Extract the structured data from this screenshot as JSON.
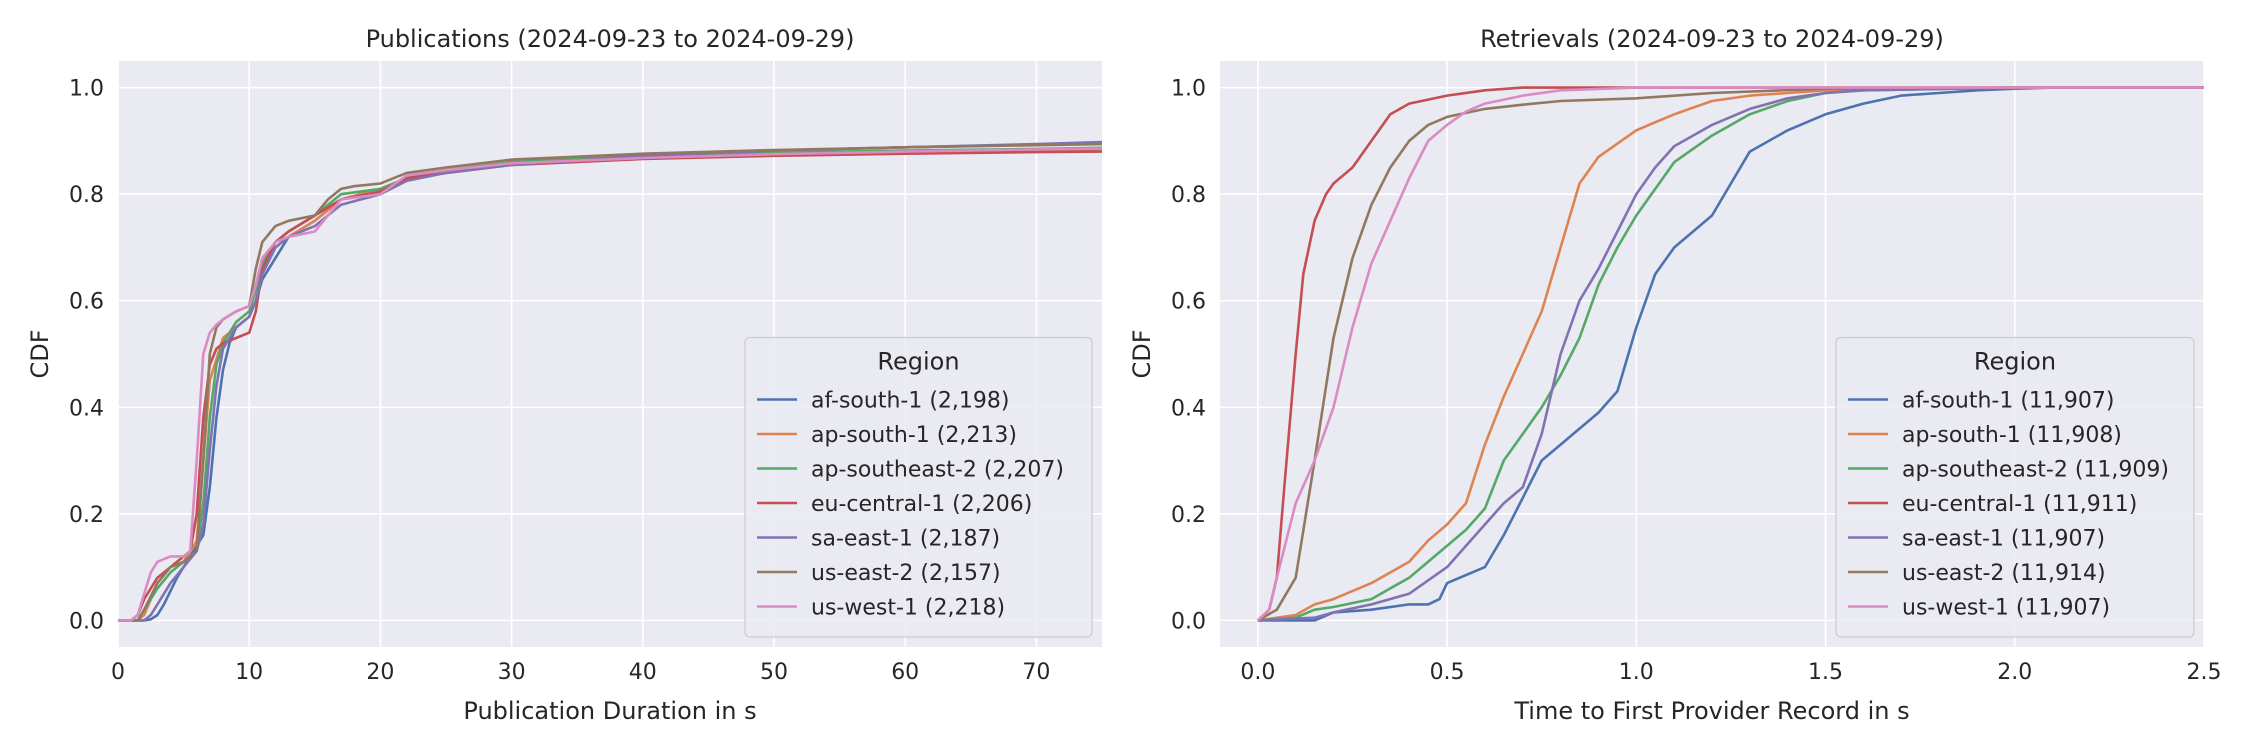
{
  "chart_data": [
    {
      "type": "line",
      "title": "Publications (2024-09-23 to 2024-09-29)",
      "xlabel": "Publication Duration in s",
      "ylabel": "CDF",
      "xlim": [
        0,
        75
      ],
      "ylim": [
        -0.05,
        1.05
      ],
      "xticks": [
        0,
        10,
        20,
        30,
        40,
        50,
        60,
        70
      ],
      "yticks": [
        0.0,
        0.2,
        0.4,
        0.6,
        0.8,
        1.0
      ],
      "grid": true,
      "legend": {
        "title": "Region",
        "placement": "lower-right"
      },
      "series": [
        {
          "name": "af-south-1 (2,198)",
          "color": "#4c72b0",
          "x": [
            0,
            2,
            2.5,
            3,
            3.5,
            4.5,
            5.5,
            6.5,
            7,
            7.5,
            8,
            8.5,
            9,
            10,
            10.5,
            11,
            12,
            13,
            15,
            17,
            20,
            22,
            25,
            30,
            40,
            50,
            60,
            70,
            75
          ],
          "y": [
            0,
            0,
            0.002,
            0.01,
            0.03,
            0.08,
            0.12,
            0.16,
            0.25,
            0.38,
            0.47,
            0.52,
            0.55,
            0.57,
            0.6,
            0.64,
            0.68,
            0.72,
            0.75,
            0.79,
            0.81,
            0.83,
            0.84,
            0.86,
            0.875,
            0.882,
            0.888,
            0.893,
            0.896
          ]
        },
        {
          "name": "ap-south-1 (2,213)",
          "color": "#dd8452",
          "x": [
            0,
            1.5,
            2,
            2.5,
            3,
            4,
            5,
            6,
            6.5,
            7,
            8,
            9,
            10,
            10.5,
            11,
            12,
            13,
            15,
            17,
            20,
            22,
            25,
            30,
            40,
            50,
            60,
            70,
            75
          ],
          "y": [
            0,
            0,
            0.01,
            0.04,
            0.07,
            0.1,
            0.11,
            0.15,
            0.3,
            0.45,
            0.53,
            0.55,
            0.57,
            0.6,
            0.65,
            0.7,
            0.72,
            0.75,
            0.79,
            0.81,
            0.83,
            0.84,
            0.855,
            0.867,
            0.874,
            0.878,
            0.881,
            0.882
          ]
        },
        {
          "name": "ap-southeast-2 (2,207)",
          "color": "#55a868",
          "x": [
            0,
            1.5,
            2,
            3,
            4,
            5,
            6,
            6.5,
            7,
            7.5,
            8,
            9,
            10,
            10.5,
            11,
            12,
            13,
            15,
            17,
            20,
            22,
            25,
            30,
            40,
            50,
            60,
            70,
            75
          ],
          "y": [
            0,
            0,
            0.02,
            0.06,
            0.09,
            0.11,
            0.13,
            0.22,
            0.38,
            0.48,
            0.52,
            0.56,
            0.58,
            0.62,
            0.67,
            0.71,
            0.73,
            0.76,
            0.8,
            0.81,
            0.83,
            0.845,
            0.86,
            0.872,
            0.878,
            0.882,
            0.885,
            0.887
          ]
        },
        {
          "name": "eu-central-1 (2,206)",
          "color": "#c44e52",
          "x": [
            0,
            1,
            1.5,
            2,
            3,
            4,
            5,
            5.5,
            6,
            6.5,
            7,
            7.5,
            8,
            9,
            10,
            10.5,
            11,
            12,
            13,
            15,
            17,
            20,
            22,
            25,
            30,
            40,
            50,
            60,
            70,
            75
          ],
          "y": [
            0,
            0,
            0.01,
            0.04,
            0.08,
            0.1,
            0.12,
            0.13,
            0.2,
            0.38,
            0.48,
            0.51,
            0.52,
            0.53,
            0.54,
            0.58,
            0.66,
            0.71,
            0.73,
            0.76,
            0.79,
            0.805,
            0.83,
            0.84,
            0.855,
            0.866,
            0.872,
            0.876,
            0.879,
            0.88
          ]
        },
        {
          "name": "sa-east-1 (2,187)",
          "color": "#8172b3",
          "x": [
            0,
            2,
            2.5,
            3,
            4,
            5,
            6,
            6.5,
            7,
            7.5,
            8,
            9,
            10,
            10.5,
            11,
            12,
            13,
            15,
            17,
            20,
            22,
            25,
            30,
            40,
            50,
            60,
            70,
            75
          ],
          "y": [
            0,
            0,
            0.01,
            0.03,
            0.07,
            0.1,
            0.13,
            0.18,
            0.32,
            0.44,
            0.51,
            0.55,
            0.57,
            0.6,
            0.65,
            0.7,
            0.72,
            0.74,
            0.78,
            0.8,
            0.825,
            0.84,
            0.855,
            0.872,
            0.882,
            0.888,
            0.894,
            0.898
          ]
        },
        {
          "name": "us-east-2 (2,157)",
          "color": "#937860",
          "x": [
            0,
            1.5,
            2,
            3,
            4,
            5,
            6,
            6.5,
            7,
            7.5,
            8,
            9,
            10,
            10.5,
            11,
            12,
            13,
            15,
            16,
            17,
            18,
            20,
            22,
            25,
            30,
            40,
            50,
            60,
            70,
            75
          ],
          "y": [
            0,
            0,
            0.02,
            0.07,
            0.1,
            0.11,
            0.13,
            0.3,
            0.5,
            0.55,
            0.565,
            0.58,
            0.59,
            0.66,
            0.71,
            0.74,
            0.75,
            0.76,
            0.79,
            0.81,
            0.815,
            0.82,
            0.84,
            0.85,
            0.865,
            0.876,
            0.883,
            0.888,
            0.892,
            0.894
          ]
        },
        {
          "name": "us-west-1 (2,218)",
          "color": "#da8bc3",
          "x": [
            0,
            1,
            1.5,
            2,
            2.5,
            3,
            4,
            5,
            5.5,
            6,
            6.5,
            7,
            7.5,
            8,
            9,
            10,
            10.5,
            11,
            12,
            13,
            15,
            17,
            20,
            22,
            25,
            30,
            40,
            50,
            60,
            70,
            75
          ],
          "y": [
            0,
            0,
            0.01,
            0.05,
            0.09,
            0.11,
            0.12,
            0.12,
            0.13,
            0.3,
            0.5,
            0.54,
            0.555,
            0.565,
            0.58,
            0.59,
            0.63,
            0.68,
            0.71,
            0.72,
            0.73,
            0.79,
            0.8,
            0.835,
            0.845,
            0.858,
            0.868,
            0.875,
            0.88,
            0.884,
            0.886
          ]
        }
      ]
    },
    {
      "type": "line",
      "title": "Retrievals (2024-09-23 to 2024-09-29)",
      "xlabel": "Time to First Provider Record in s",
      "ylabel": "CDF",
      "xlim": [
        -0.1,
        2.5
      ],
      "ylim": [
        -0.05,
        1.05
      ],
      "xticks": [
        0.0,
        0.5,
        1.0,
        1.5,
        2.0,
        2.5
      ],
      "yticks": [
        0.0,
        0.2,
        0.4,
        0.6,
        0.8,
        1.0
      ],
      "grid": true,
      "legend": {
        "title": "Region",
        "placement": "lower-right"
      },
      "series": [
        {
          "name": "af-south-1 (11,907)",
          "color": "#4c72b0",
          "x": [
            0,
            0.15,
            0.2,
            0.3,
            0.4,
            0.45,
            0.48,
            0.5,
            0.6,
            0.65,
            0.7,
            0.75,
            0.8,
            0.85,
            0.9,
            0.95,
            1.0,
            1.05,
            1.1,
            1.15,
            1.2,
            1.25,
            1.3,
            1.4,
            1.5,
            1.6,
            1.7,
            1.8,
            1.9,
            2.0,
            2.1,
            2.2,
            2.5
          ],
          "y": [
            0,
            0.0,
            0.015,
            0.02,
            0.03,
            0.03,
            0.04,
            0.07,
            0.1,
            0.16,
            0.23,
            0.3,
            0.33,
            0.36,
            0.39,
            0.43,
            0.55,
            0.65,
            0.7,
            0.73,
            0.76,
            0.82,
            0.88,
            0.92,
            0.95,
            0.97,
            0.985,
            0.99,
            0.995,
            0.998,
            1.0,
            1.0,
            1.0
          ]
        },
        {
          "name": "ap-south-1 (11,908)",
          "color": "#dd8452",
          "x": [
            0,
            0.1,
            0.15,
            0.2,
            0.3,
            0.4,
            0.45,
            0.5,
            0.55,
            0.6,
            0.65,
            0.7,
            0.75,
            0.8,
            0.85,
            0.9,
            1.0,
            1.1,
            1.2,
            1.3,
            1.4,
            1.5,
            2.0,
            2.5
          ],
          "y": [
            0,
            0.01,
            0.03,
            0.04,
            0.07,
            0.11,
            0.15,
            0.18,
            0.22,
            0.33,
            0.42,
            0.5,
            0.58,
            0.7,
            0.82,
            0.87,
            0.92,
            0.95,
            0.975,
            0.985,
            0.99,
            0.995,
            1.0,
            1.0
          ]
        },
        {
          "name": "ap-southeast-2 (11,909)",
          "color": "#55a868",
          "x": [
            0,
            0.1,
            0.15,
            0.2,
            0.3,
            0.4,
            0.5,
            0.55,
            0.6,
            0.65,
            0.7,
            0.75,
            0.8,
            0.85,
            0.9,
            0.95,
            1.0,
            1.1,
            1.2,
            1.3,
            1.4,
            1.5,
            1.6,
            2.0,
            2.5
          ],
          "y": [
            0,
            0.005,
            0.02,
            0.025,
            0.04,
            0.08,
            0.14,
            0.17,
            0.21,
            0.3,
            0.35,
            0.4,
            0.46,
            0.53,
            0.63,
            0.7,
            0.76,
            0.86,
            0.91,
            0.95,
            0.975,
            0.99,
            0.995,
            1.0,
            1.0
          ]
        },
        {
          "name": "eu-central-1 (11,911)",
          "color": "#c44e52",
          "x": [
            0,
            0.03,
            0.05,
            0.07,
            0.1,
            0.12,
            0.15,
            0.18,
            0.2,
            0.25,
            0.3,
            0.35,
            0.4,
            0.5,
            0.6,
            0.7,
            1.0,
            2.5
          ],
          "y": [
            0,
            0.02,
            0.08,
            0.25,
            0.5,
            0.65,
            0.75,
            0.8,
            0.82,
            0.85,
            0.9,
            0.95,
            0.97,
            0.985,
            0.995,
            1.0,
            1.0,
            1.0
          ]
        },
        {
          "name": "sa-east-1 (11,907)",
          "color": "#8172b3",
          "x": [
            0,
            0.15,
            0.2,
            0.3,
            0.4,
            0.5,
            0.6,
            0.65,
            0.7,
            0.75,
            0.8,
            0.85,
            0.9,
            0.95,
            1.0,
            1.05,
            1.1,
            1.2,
            1.3,
            1.4,
            1.5,
            1.6,
            2.0,
            2.5
          ],
          "y": [
            0,
            0.005,
            0.015,
            0.03,
            0.05,
            0.1,
            0.18,
            0.22,
            0.25,
            0.35,
            0.5,
            0.6,
            0.66,
            0.73,
            0.8,
            0.85,
            0.89,
            0.93,
            0.96,
            0.98,
            0.99,
            0.995,
            1.0,
            1.0
          ]
        },
        {
          "name": "us-east-2 (11,914)",
          "color": "#937860",
          "x": [
            0,
            0.05,
            0.1,
            0.15,
            0.2,
            0.25,
            0.3,
            0.35,
            0.4,
            0.45,
            0.5,
            0.6,
            0.7,
            0.8,
            1.0,
            1.2,
            1.5,
            2.0,
            2.5
          ],
          "y": [
            0,
            0.02,
            0.08,
            0.3,
            0.53,
            0.68,
            0.78,
            0.85,
            0.9,
            0.93,
            0.945,
            0.96,
            0.968,
            0.975,
            0.98,
            0.99,
            0.998,
            1.0,
            1.0
          ]
        },
        {
          "name": "us-west-1 (11,907)",
          "color": "#da8bc3",
          "x": [
            0,
            0.03,
            0.05,
            0.1,
            0.15,
            0.2,
            0.25,
            0.3,
            0.35,
            0.4,
            0.45,
            0.5,
            0.55,
            0.6,
            0.7,
            0.8,
            1.0,
            2.0,
            2.5
          ],
          "y": [
            0,
            0.02,
            0.08,
            0.22,
            0.3,
            0.4,
            0.55,
            0.67,
            0.75,
            0.83,
            0.9,
            0.93,
            0.955,
            0.97,
            0.985,
            0.995,
            1.0,
            1.0,
            1.0
          ]
        }
      ]
    }
  ]
}
